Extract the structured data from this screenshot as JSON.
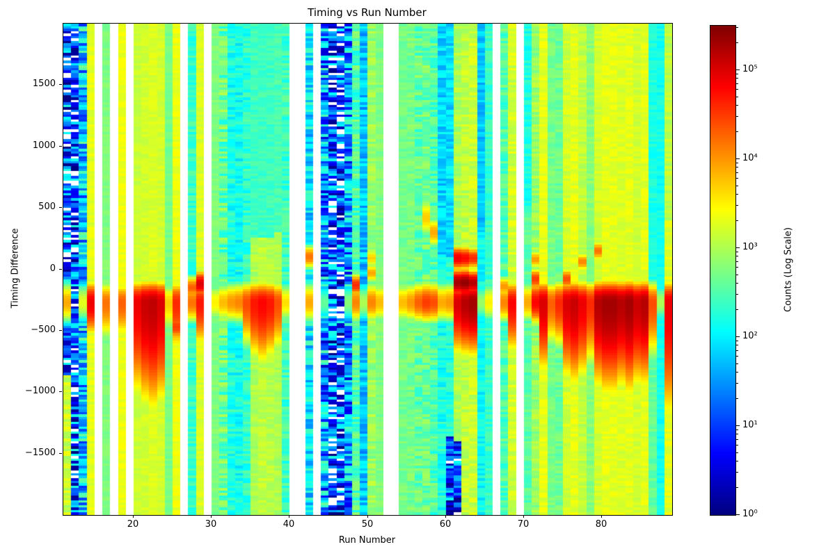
{
  "chart_data": {
    "type": "heatmap",
    "title": "Timing vs Run Number",
    "xlabel": "Run Number",
    "ylabel": "Timing Difference",
    "x_range": [
      11,
      89
    ],
    "y_range": [
      -2000,
      2000
    ],
    "x_ticks": [
      20,
      30,
      40,
      50,
      60,
      70,
      80
    ],
    "y_ticks": [
      1500,
      1000,
      500,
      0,
      -500,
      -1000,
      -1500
    ],
    "colormap": "jet",
    "grid": false,
    "colorbar": {
      "label": "Counts (Log Scale)",
      "scale": "log",
      "position": "right",
      "vmin": 1,
      "vmax": 316227,
      "tick_values": [
        1,
        10,
        100,
        1000,
        10000,
        100000
      ],
      "tick_labels": [
        "10⁰",
        "10¹",
        "10²",
        "10³",
        "10⁴",
        "10⁵"
      ]
    },
    "y_bin_size": 20,
    "band": {
      "description": "strong horizontal high-count band present in most runs",
      "center": -270,
      "sigma": 60,
      "tail_sigma_scale": 2.8
    },
    "columns": [
      {
        "run": 11,
        "bg": 0.9,
        "noise": 1.35,
        "band": 3.9,
        "bottom": {
          "from": -850,
          "level": 3.15
        }
      },
      {
        "run": 12,
        "bg": 0.9,
        "noise": 1.35,
        "band": 0
      },
      {
        "run": 13,
        "bg": 1.8,
        "noise": 0.9,
        "band": 3.3
      },
      {
        "run": 14,
        "bg": 3.3,
        "noise": 0.12,
        "band": 4.9,
        "tail": 0.2
      },
      {
        "run": 15,
        "missing": true
      },
      {
        "run": 16,
        "bg": 2.75,
        "noise": 0.1,
        "band": 4.2,
        "tail": 0.3
      },
      {
        "run": 17,
        "missing": true
      },
      {
        "run": 18,
        "bg": 3.35,
        "noise": 0.1,
        "band": 4.3,
        "tail": 0.3
      },
      {
        "run": 19,
        "missing": true
      },
      {
        "run": 20,
        "bg": 3.15,
        "noise": 0.1,
        "band": 4.9,
        "tail": 1.2
      },
      {
        "run": 21,
        "bg": 3.2,
        "noise": 0.1,
        "band": 5.1,
        "tail": 1.3
      },
      {
        "run": 22,
        "bg": 3.25,
        "noise": 0.1,
        "band": 5.15,
        "tail": 1.4
      },
      {
        "run": 23,
        "bg": 3.2,
        "noise": 0.1,
        "band": 5.0,
        "tail": 1.3
      },
      {
        "run": 24,
        "bg": 2.7,
        "noise": 0.1,
        "band": 3.7,
        "tail": 0.2
      },
      {
        "run": 25,
        "bg": 3.35,
        "noise": 0.12,
        "band": 4.6,
        "tail": 0.5,
        "spots": [
          {
            "y": -470,
            "amp": 4.5,
            "h": 40
          }
        ]
      },
      {
        "run": 26,
        "missing": true
      },
      {
        "run": 27,
        "bg": 2.35,
        "noise": 0.25,
        "band": 4.2,
        "spots": [
          {
            "y": -150,
            "amp": 4.3,
            "h": 35
          }
        ]
      },
      {
        "run": 28,
        "bg": 3.25,
        "noise": 0.12,
        "band": 4.7,
        "tail": 0.4,
        "spots": [
          {
            "y": -120,
            "amp": 5.0,
            "h": 38
          }
        ]
      },
      {
        "run": 29,
        "missing": true
      },
      {
        "run": 30,
        "bg": 2.75,
        "noise": 0.12,
        "band": 3.5
      },
      {
        "run": 31,
        "bg": 2.6,
        "noise": 0.45,
        "band": 3.8
      },
      {
        "run": 32,
        "bg": 2.2,
        "noise": 0.3,
        "band": 4.0
      },
      {
        "run": 33,
        "bg": 2.15,
        "noise": 0.3,
        "band": 4.1
      },
      {
        "run": 34,
        "bg": 2.3,
        "noise": 0.3,
        "band": 4.4,
        "tail": 0.4
      },
      {
        "run": 35,
        "bg": 3.0,
        "noise": 0.15,
        "band": 4.7,
        "tail": 0.6,
        "top": {
          "level": 2.4,
          "above": 250
        }
      },
      {
        "run": 36,
        "bg": 3.1,
        "noise": 0.15,
        "band": 4.8,
        "tail": 0.7,
        "top": {
          "level": 2.4,
          "above": 250
        }
      },
      {
        "run": 37,
        "bg": 3.05,
        "noise": 0.15,
        "band": 4.7,
        "tail": 0.6,
        "top": {
          "level": 2.4,
          "above": 250
        }
      },
      {
        "run": 38,
        "bg": 3.0,
        "noise": 0.15,
        "band": 4.4,
        "tail": 0.5,
        "top": {
          "level": 2.45,
          "above": 300
        }
      },
      {
        "run": 39,
        "bg": 2.4,
        "noise": 0.3,
        "band": 3.6
      },
      {
        "run": 40,
        "missing": true
      },
      {
        "run": 41,
        "missing": true
      },
      {
        "run": 42,
        "bg": 1.95,
        "noise": 0.55,
        "band": 3.9,
        "spots": [
          {
            "y": 100,
            "amp": 4.2,
            "h": 35
          }
        ]
      },
      {
        "run": 43,
        "missing": true
      },
      {
        "run": 44,
        "bg": 1.5,
        "noise": 1.1,
        "band": 2.6
      },
      {
        "run": 45,
        "bg": 0.8,
        "noise": 1.4,
        "band": 0
      },
      {
        "run": 46,
        "bg": 0.8,
        "noise": 1.4,
        "band": 0
      },
      {
        "run": 47,
        "bg": 1.5,
        "noise": 1.0,
        "band": 2.8
      },
      {
        "run": 48,
        "bg": 2.5,
        "noise": 0.4,
        "band": 4.1,
        "spots": [
          {
            "y": -130,
            "amp": 4.6,
            "h": 32
          }
        ]
      },
      {
        "run": 49,
        "bg": 1.75,
        "noise": 0.4,
        "band": 3.0
      },
      {
        "run": 50,
        "bg": 2.9,
        "noise": 0.25,
        "band": 4.1,
        "spots": [
          {
            "y": -30,
            "amp": 3.9,
            "h": 30
          },
          {
            "y": 90,
            "amp": 3.7,
            "h": 28
          }
        ]
      },
      {
        "run": 51,
        "bg": 2.75,
        "noise": 0.15,
        "band": 3.8
      },
      {
        "run": 52,
        "missing": true
      },
      {
        "run": 53,
        "missing": true
      },
      {
        "run": 54,
        "bg": 2.7,
        "noise": 0.15,
        "band": 3.8
      },
      {
        "run": 55,
        "bg": 2.7,
        "noise": 0.2,
        "band": 4.0
      },
      {
        "run": 56,
        "bg": 2.6,
        "noise": 0.35,
        "band": 4.3
      },
      {
        "run": 57,
        "bg": 2.65,
        "noise": 0.35,
        "band": 4.5,
        "spots": [
          {
            "y": 420,
            "amp": 3.7,
            "h": 60
          }
        ]
      },
      {
        "run": 58,
        "bg": 2.5,
        "noise": 0.35,
        "band": 4.4,
        "spots": [
          {
            "y": 300,
            "amp": 3.9,
            "h": 45
          }
        ]
      },
      {
        "run": 59,
        "bg": 2.2,
        "noise": 0.3,
        "band": 3.9,
        "top": {
          "level": 1.85,
          "above": 100
        }
      },
      {
        "run": 60,
        "bg": 2.2,
        "noise": 0.3,
        "band": 4.0,
        "top": {
          "level": 1.9,
          "above": 100
        },
        "bottom_dark": {
          "below": -1350,
          "level": 0.8,
          "noise": 1.3
        }
      },
      {
        "run": 61,
        "bg": 3.0,
        "noise": 0.2,
        "band": 5.0,
        "tail": 0.5,
        "spots": [
          {
            "y": 90,
            "amp": 4.9,
            "h": 35
          },
          {
            "y": -110,
            "amp": 5.3,
            "h": 38
          }
        ],
        "bottom_dark": {
          "below": -1400,
          "level": 0.8,
          "noise": 1.4
        }
      },
      {
        "run": 62,
        "bg": 3.1,
        "noise": 0.2,
        "band": 5.2,
        "tail": 0.5,
        "spots": [
          {
            "y": 90,
            "amp": 4.8,
            "h": 35
          },
          {
            "y": -110,
            "amp": 5.4,
            "h": 38
          }
        ]
      },
      {
        "run": 63,
        "bg": 3.15,
        "noise": 0.2,
        "band": 5.3,
        "tail": 0.5,
        "spots": [
          {
            "y": 90,
            "amp": 4.6,
            "h": 32
          },
          {
            "y": -110,
            "amp": 5.2,
            "h": 35
          }
        ]
      },
      {
        "run": 64,
        "bg": 2.1,
        "noise": 0.25,
        "band": 2.9,
        "top": {
          "level": 1.75,
          "above": 300
        }
      },
      {
        "run": 65,
        "bg": 2.35,
        "noise": 0.2,
        "band": 3.5
      },
      {
        "run": 66,
        "missing": true
      },
      {
        "run": 67,
        "bg": 2.5,
        "noise": 0.3,
        "band": 4.1,
        "spots": [
          {
            "y": -140,
            "amp": 4.0,
            "h": 32
          }
        ]
      },
      {
        "run": 68,
        "bg": 3.2,
        "noise": 0.2,
        "band": 4.8,
        "tail": 0.5
      },
      {
        "run": 69,
        "missing": true
      },
      {
        "run": 70,
        "bg": 2.55,
        "noise": 0.2,
        "band": 3.9,
        "top": {
          "level": 2.2,
          "above": 500
        }
      },
      {
        "run": 71,
        "bg": 2.9,
        "noise": 0.25,
        "band": 4.8,
        "spots": [
          {
            "y": -80,
            "amp": 4.5,
            "h": 32
          },
          {
            "y": 80,
            "amp": 4.0,
            "h": 28
          }
        ]
      },
      {
        "run": 72,
        "bg": 3.3,
        "noise": 0.15,
        "band": 5.0,
        "tail": 0.8
      },
      {
        "run": 73,
        "bg": 2.7,
        "noise": 0.15,
        "band": 4.3,
        "tail": 0.4
      },
      {
        "run": 74,
        "bg": 2.65,
        "noise": 0.2,
        "band": 4.6,
        "tail": 0.4
      },
      {
        "run": 75,
        "bg": 3.2,
        "noise": 0.15,
        "band": 5.0,
        "tail": 0.9,
        "spots": [
          {
            "y": -80,
            "amp": 4.4,
            "h": 32
          }
        ]
      },
      {
        "run": 76,
        "bg": 3.3,
        "noise": 0.15,
        "band": 5.1,
        "tail": 1.0
      },
      {
        "run": 77,
        "bg": 3.1,
        "noise": 0.15,
        "band": 4.9,
        "tail": 0.9,
        "spots": [
          {
            "y": 60,
            "amp": 4.1,
            "h": 28
          }
        ]
      },
      {
        "run": 78,
        "bg": 2.8,
        "noise": 0.15,
        "band": 4.6,
        "tail": 0.7
      },
      {
        "run": 79,
        "bg": 3.2,
        "noise": 0.12,
        "band": 5.2,
        "tail": 1.0,
        "spots": [
          {
            "y": 150,
            "amp": 4.2,
            "h": 30
          }
        ]
      },
      {
        "run": 80,
        "bg": 3.3,
        "noise": 0.12,
        "band": 5.3,
        "tail": 1.1
      },
      {
        "run": 81,
        "bg": 3.3,
        "noise": 0.12,
        "band": 5.3,
        "tail": 1.1
      },
      {
        "run": 82,
        "bg": 3.25,
        "noise": 0.12,
        "band": 5.2,
        "tail": 1.0
      },
      {
        "run": 83,
        "bg": 3.3,
        "noise": 0.12,
        "band": 5.3,
        "tail": 1.1
      },
      {
        "run": 84,
        "bg": 3.2,
        "noise": 0.12,
        "band": 5.1,
        "tail": 1.0
      },
      {
        "run": 85,
        "bg": 3.3,
        "noise": 0.12,
        "band": 5.2,
        "tail": 1.0
      },
      {
        "run": 86,
        "bg": 2.6,
        "noise": 0.15,
        "band": 4.4,
        "tail": 0.6,
        "top": {
          "level": 2.2,
          "above": -150
        }
      },
      {
        "run": 87,
        "bg": 2.15,
        "noise": 0.15,
        "band": 3.0
      },
      {
        "run": 88,
        "bg": 3.3,
        "noise": 0.15,
        "band": 4.9,
        "tail": 1.6,
        "top": {
          "level": 3.1,
          "above": 400
        }
      }
    ]
  }
}
